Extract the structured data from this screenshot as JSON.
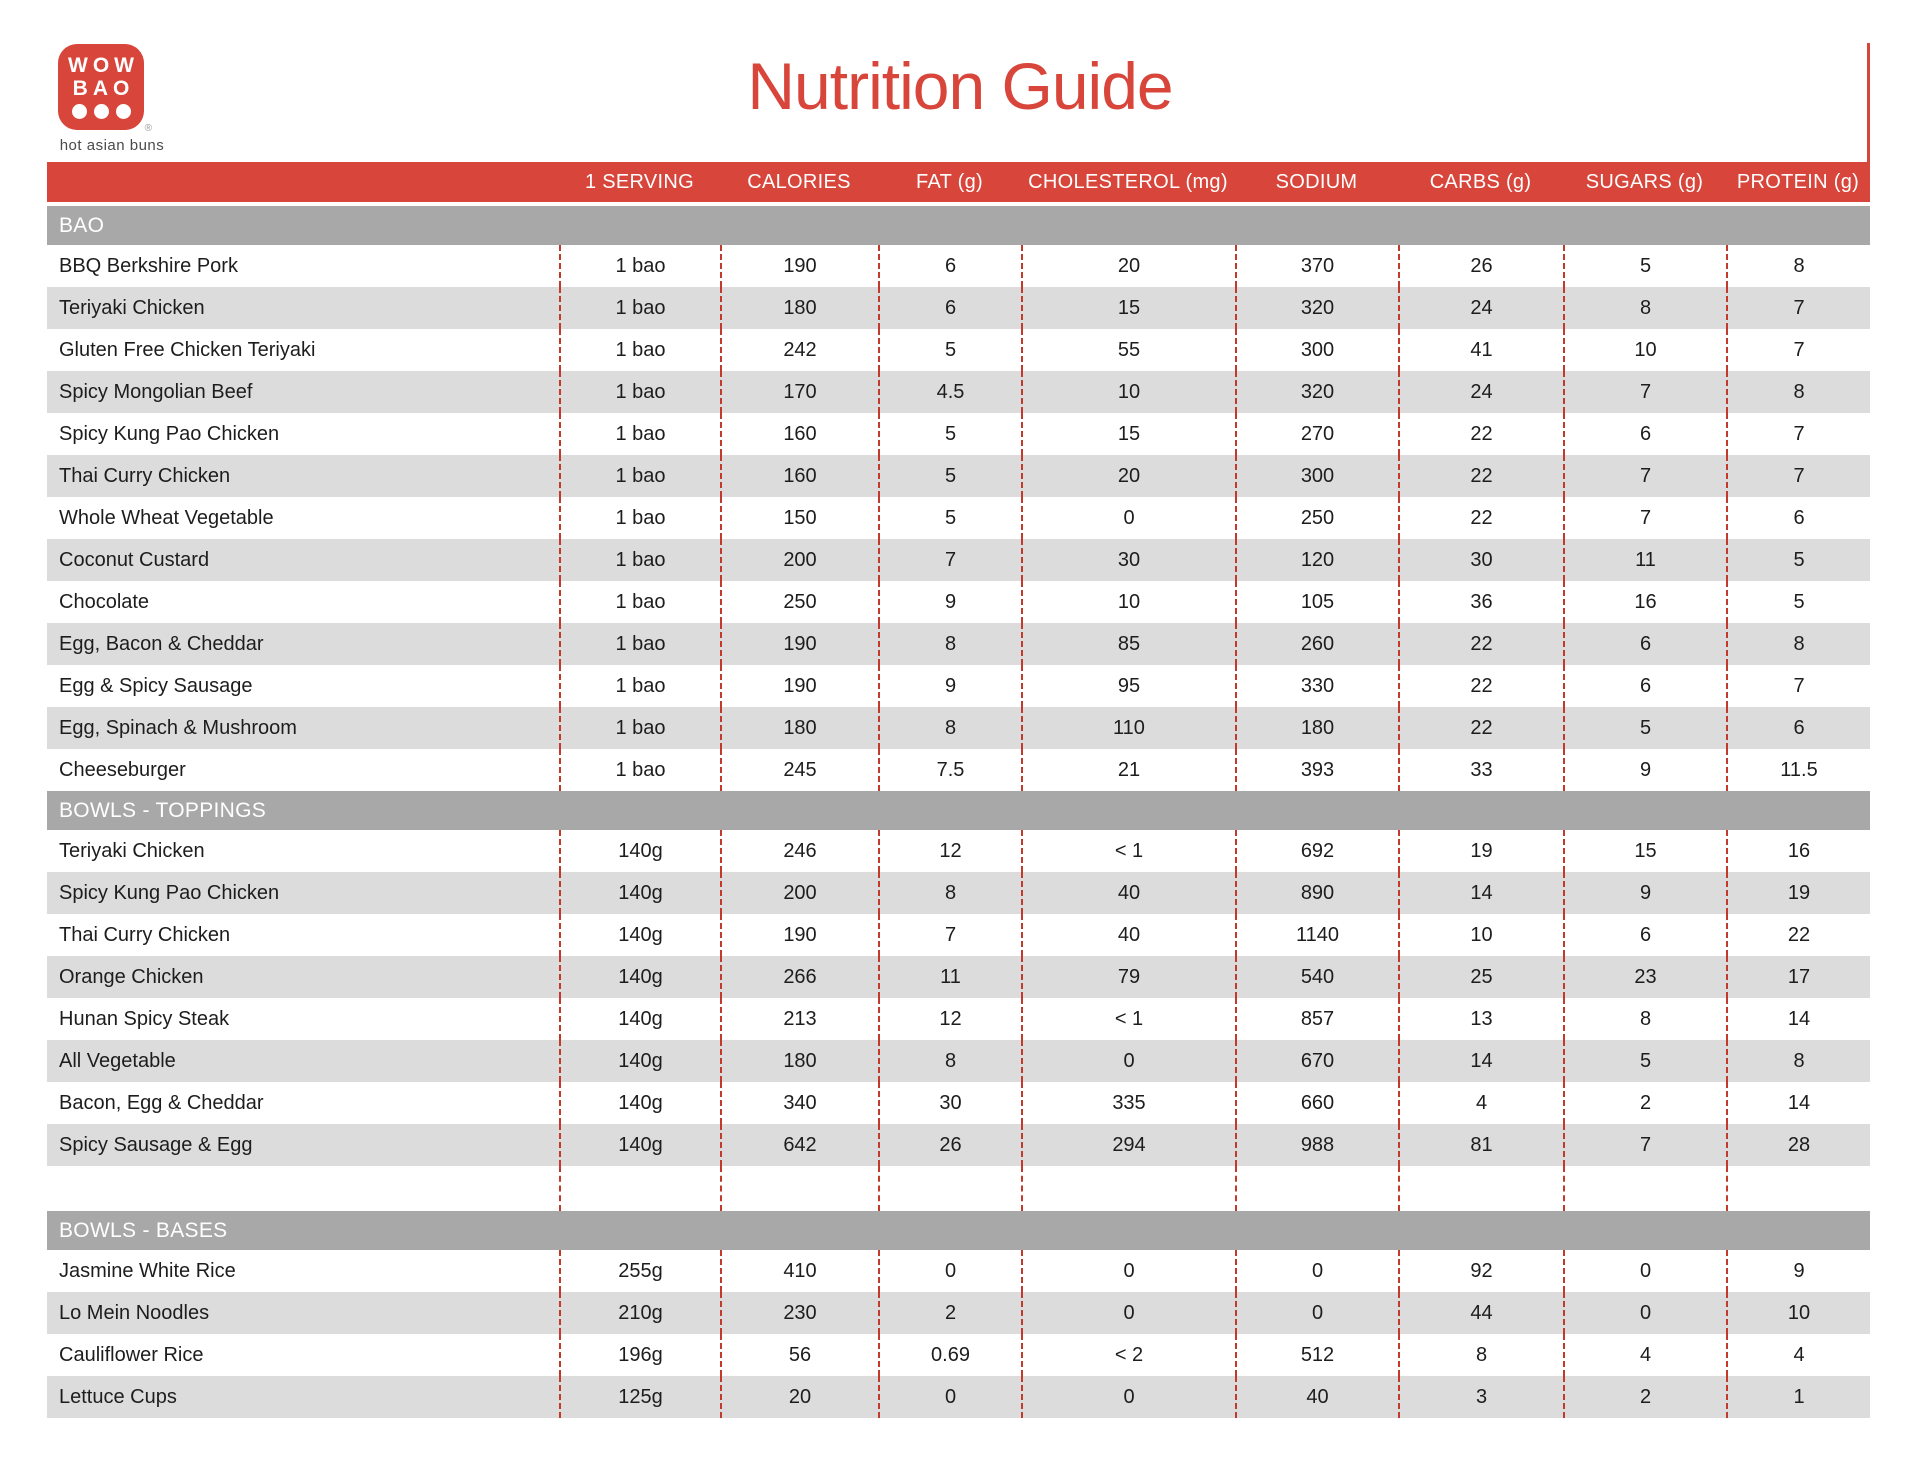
{
  "page": {
    "title": "Nutrition Guide"
  },
  "logo": {
    "line1": "WOW",
    "line2": "BAO",
    "registered": "®",
    "tagline": "hot asian buns"
  },
  "colors": {
    "brand_red": "#d8453a",
    "dashed_line_red": "#c23a2c",
    "section_bar_gray": "#a8a8a8",
    "row_stripe_gray": "#dcdcdc"
  },
  "table": {
    "columns": [
      "1 SERVING",
      "CALORIES",
      "FAT (g)",
      "CHOLESTEROL (mg)",
      "SODIUM",
      "CARBS (g)",
      "SUGARS (g)",
      "PROTEIN (g)"
    ],
    "sections": [
      {
        "name": "BAO",
        "spacer_after": false,
        "rows": [
          [
            "BBQ Berkshire Pork",
            "1 bao",
            "190",
            "6",
            "20",
            "370",
            "26",
            "5",
            "8"
          ],
          [
            "Teriyaki Chicken",
            "1 bao",
            "180",
            "6",
            "15",
            "320",
            "24",
            "8",
            "7"
          ],
          [
            "Gluten Free Chicken Teriyaki",
            "1 bao",
            "242",
            "5",
            "55",
            "300",
            "41",
            "10",
            "7"
          ],
          [
            "Spicy Mongolian Beef",
            "1 bao",
            "170",
            "4.5",
            "10",
            "320",
            "24",
            "7",
            "8"
          ],
          [
            "Spicy Kung Pao Chicken",
            "1 bao",
            "160",
            "5",
            "15",
            "270",
            "22",
            "6",
            "7"
          ],
          [
            "Thai Curry Chicken",
            "1 bao",
            "160",
            "5",
            "20",
            "300",
            "22",
            "7",
            "7"
          ],
          [
            "Whole Wheat Vegetable",
            "1 bao",
            "150",
            "5",
            "0",
            "250",
            "22",
            "7",
            "6"
          ],
          [
            "Coconut Custard",
            "1 bao",
            "200",
            "7",
            "30",
            "120",
            "30",
            "11",
            "5"
          ],
          [
            "Chocolate",
            "1 bao",
            "250",
            "9",
            "10",
            "105",
            "36",
            "16",
            "5"
          ],
          [
            "Egg, Bacon & Cheddar",
            "1 bao",
            "190",
            "8",
            "85",
            "260",
            "22",
            "6",
            "8"
          ],
          [
            "Egg & Spicy Sausage",
            "1 bao",
            "190",
            "9",
            "95",
            "330",
            "22",
            "6",
            "7"
          ],
          [
            "Egg, Spinach & Mushroom",
            "1 bao",
            "180",
            "8",
            "110",
            "180",
            "22",
            "5",
            "6"
          ],
          [
            "Cheeseburger",
            "1 bao",
            "245",
            "7.5",
            "21",
            "393",
            "33",
            "9",
            "11.5"
          ]
        ]
      },
      {
        "name": "BOWLS - TOPPINGS",
        "spacer_after": true,
        "rows": [
          [
            "Teriyaki Chicken",
            "140g",
            "246",
            "12",
            "< 1",
            "692",
            "19",
            "15",
            "16"
          ],
          [
            "Spicy Kung Pao Chicken",
            "140g",
            "200",
            "8",
            "40",
            "890",
            "14",
            "9",
            "19"
          ],
          [
            "Thai Curry Chicken",
            "140g",
            "190",
            "7",
            "40",
            "1140",
            "10",
            "6",
            "22"
          ],
          [
            "Orange Chicken",
            "140g",
            "266",
            "11",
            "79",
            "540",
            "25",
            "23",
            "17"
          ],
          [
            "Hunan Spicy Steak",
            "140g",
            "213",
            "12",
            "< 1",
            "857",
            "13",
            "8",
            "14"
          ],
          [
            "All Vegetable",
            "140g",
            "180",
            "8",
            "0",
            "670",
            "14",
            "5",
            "8"
          ],
          [
            "Bacon, Egg & Cheddar",
            "140g",
            "340",
            "30",
            "335",
            "660",
            "4",
            "2",
            "14"
          ],
          [
            "Spicy Sausage & Egg",
            "140g",
            "642",
            "26",
            "294",
            "988",
            "81",
            "7",
            "28"
          ]
        ]
      },
      {
        "name": "BOWLS - BASES",
        "spacer_after": false,
        "rows": [
          [
            "Jasmine White Rice",
            "255g",
            "410",
            "0",
            "0",
            "0",
            "92",
            "0",
            "9"
          ],
          [
            "Lo Mein Noodles",
            "210g",
            "230",
            "2",
            "0",
            "0",
            "44",
            "0",
            "10"
          ],
          [
            "Cauliflower Rice",
            "196g",
            "56",
            "0.69",
            "< 2",
            "512",
            "8",
            "4",
            "4"
          ],
          [
            "Lettuce Cups",
            "125g",
            "20",
            "0",
            "0",
            "40",
            "3",
            "2",
            "1"
          ]
        ]
      }
    ]
  }
}
